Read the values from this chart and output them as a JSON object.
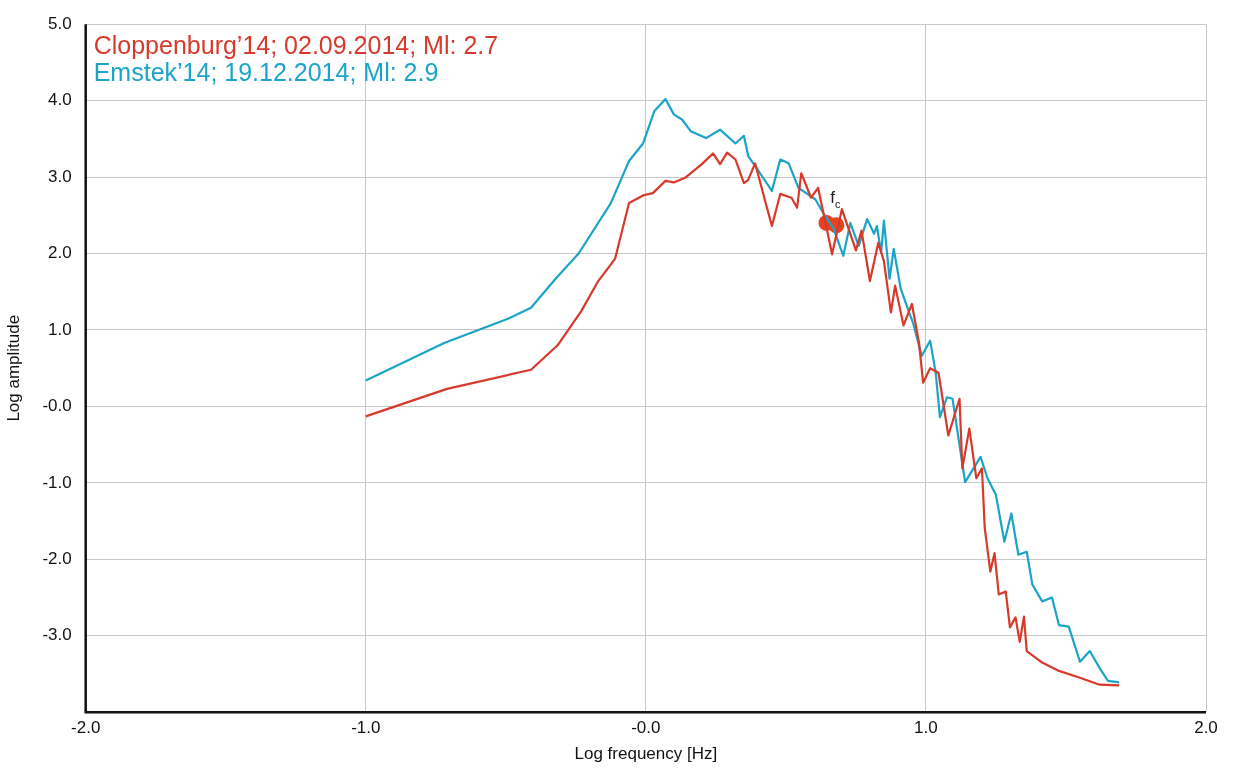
{
  "chart_data": {
    "type": "line",
    "xlabel": "Log frequency [Hz]",
    "ylabel": "Log amplitude",
    "xlim": [
      -2,
      2
    ],
    "ylim": [
      -4,
      5
    ],
    "xticks": [
      {
        "value": -2,
        "label": "-2.0"
      },
      {
        "value": -1,
        "label": "-1.0"
      },
      {
        "value": 0,
        "label": "-0.0"
      },
      {
        "value": 1,
        "label": "1.0"
      },
      {
        "value": 2,
        "label": "2.0"
      }
    ],
    "yticks": [
      {
        "value": -3,
        "label": "-3.0"
      },
      {
        "value": -2,
        "label": "-2.0"
      },
      {
        "value": -1,
        "label": "-1.0"
      },
      {
        "value": 0,
        "label": "-0.0"
      },
      {
        "value": 1,
        "label": "1.0"
      },
      {
        "value": 2,
        "label": "2.0"
      },
      {
        "value": 3,
        "label": "3.0"
      },
      {
        "value": 4,
        "label": "4.0"
      },
      {
        "value": 5,
        "label": "5.0"
      }
    ],
    "grid": true,
    "legend": "top left",
    "marker": "none",
    "line_style": "solid",
    "annotations": [
      "f$_{c}$"
    ],
    "series": [
      {
        "name": "Cloppenburg’14; 02.09.2014; Ml: 2.7",
        "color": "#d7392a",
        "x": [
          -1.0,
          -0.71,
          -0.41,
          -0.315,
          -0.23,
          -0.17,
          -0.11,
          -0.06,
          -0.01,
          0.025,
          0.07,
          0.1,
          0.14,
          0.2,
          0.24,
          0.265,
          0.29,
          0.32,
          0.35,
          0.365,
          0.39,
          0.45,
          0.48,
          0.52,
          0.54,
          0.555,
          0.59,
          0.615,
          0.665,
          0.7,
          0.75,
          0.77,
          0.8,
          0.83,
          0.85,
          0.875,
          0.89,
          0.92,
          0.95,
          0.975,
          0.99,
          1.015,
          1.045,
          1.08,
          1.12,
          1.13,
          1.155,
          1.18,
          1.2,
          1.21,
          1.23,
          1.245,
          1.26,
          1.285,
          1.3,
          1.32,
          1.335,
          1.35,
          1.36,
          1.415,
          1.475,
          1.55,
          1.62,
          1.69
        ],
        "values": [
          -0.13,
          0.23,
          0.48,
          0.8,
          1.25,
          1.64,
          1.93,
          2.66,
          2.76,
          2.79,
          2.95,
          2.93,
          2.99,
          3.17,
          3.31,
          3.17,
          3.32,
          3.23,
          2.92,
          2.96,
          3.18,
          2.36,
          2.78,
          2.73,
          2.6,
          3.05,
          2.73,
          2.86,
          1.99,
          2.58,
          2.04,
          2.3,
          1.64,
          2.14,
          1.9,
          1.23,
          1.58,
          1.06,
          1.34,
          0.84,
          0.31,
          0.5,
          0.44,
          -0.38,
          0.1,
          -0.81,
          -0.29,
          -0.94,
          -0.81,
          -1.59,
          -2.16,
          -1.92,
          -2.46,
          -2.42,
          -2.89,
          -2.76,
          -3.08,
          -2.75,
          -3.2,
          -3.35,
          -3.46,
          -3.55,
          -3.64,
          -3.65
        ]
      },
      {
        "name": "Emstek’14; 19.12.2014; Ml: 2.9",
        "color": "#1ca4c8",
        "x": [
          -1.0,
          -0.72,
          -0.49,
          -0.41,
          -0.32,
          -0.24,
          -0.125,
          -0.06,
          -0.01,
          0.03,
          0.07,
          0.1,
          0.13,
          0.16,
          0.215,
          0.265,
          0.32,
          0.35,
          0.366,
          0.395,
          0.45,
          0.48,
          0.51,
          0.545,
          0.605,
          0.635,
          0.67,
          0.705,
          0.73,
          0.76,
          0.79,
          0.815,
          0.825,
          0.84,
          0.85,
          0.87,
          0.885,
          0.91,
          0.94,
          0.955,
          0.985,
          1.015,
          1.035,
          1.05,
          1.075,
          1.095,
          1.14,
          1.195,
          1.22,
          1.25,
          1.28,
          1.305,
          1.33,
          1.36,
          1.38,
          1.415,
          1.45,
          1.475,
          1.51,
          1.55,
          1.585,
          1.62,
          1.65,
          1.69
        ],
        "values": [
          0.34,
          0.83,
          1.15,
          1.29,
          1.68,
          2.0,
          2.66,
          3.21,
          3.44,
          3.86,
          4.02,
          3.82,
          3.75,
          3.6,
          3.51,
          3.62,
          3.44,
          3.54,
          3.27,
          3.12,
          2.82,
          3.23,
          3.18,
          2.86,
          2.71,
          2.52,
          2.33,
          1.97,
          2.4,
          2.1,
          2.45,
          2.26,
          2.36,
          2.01,
          2.43,
          1.67,
          2.06,
          1.54,
          1.23,
          1.08,
          0.66,
          0.86,
          0.44,
          -0.14,
          0.12,
          0.1,
          -0.99,
          -0.66,
          -0.94,
          -1.16,
          -1.77,
          -1.4,
          -1.94,
          -1.9,
          -2.33,
          -2.55,
          -2.5,
          -2.86,
          -2.88,
          -3.34,
          -3.2,
          -3.42,
          -3.59,
          -3.61
        ]
      },
      {
        "type": "scatter",
        "color": "#e8421e",
        "marker": "circle",
        "x": [
          0.645,
          0.68
        ],
        "values": [
          2.4,
          2.37
        ]
      }
    ]
  }
}
